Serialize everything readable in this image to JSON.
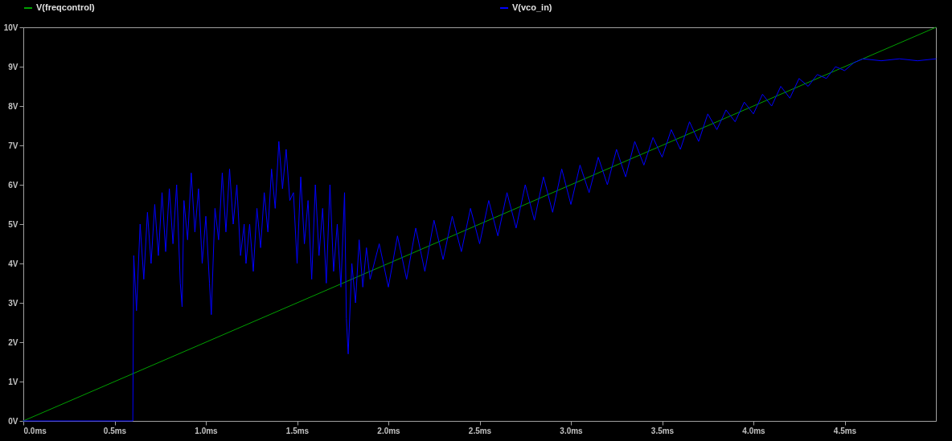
{
  "chart_data": {
    "type": "line",
    "xlim": [
      0,
      5
    ],
    "ylim": [
      0,
      10
    ],
    "xticks": [
      {
        "value": 0,
        "label": "0.0ms"
      },
      {
        "value": 0.5,
        "label": "0.5ms"
      },
      {
        "value": 1,
        "label": "1.0ms"
      },
      {
        "value": 1.5,
        "label": "1.5ms"
      },
      {
        "value": 2,
        "label": "2.0ms"
      },
      {
        "value": 2.5,
        "label": "2.5ms"
      },
      {
        "value": 3,
        "label": "3.0ms"
      },
      {
        "value": 3.5,
        "label": "3.5ms"
      },
      {
        "value": 4,
        "label": "4.0ms"
      },
      {
        "value": 4.5,
        "label": "4.5ms"
      }
    ],
    "yticks": [
      {
        "value": 0,
        "label": "0V"
      },
      {
        "value": 1,
        "label": "1V"
      },
      {
        "value": 2,
        "label": "2V"
      },
      {
        "value": 3,
        "label": "3V"
      },
      {
        "value": 4,
        "label": "4V"
      },
      {
        "value": 5,
        "label": "5V"
      },
      {
        "value": 6,
        "label": "6V"
      },
      {
        "value": 7,
        "label": "7V"
      },
      {
        "value": 8,
        "label": "8V"
      },
      {
        "value": 9,
        "label": "9V"
      },
      {
        "value": 10,
        "label": "10V"
      }
    ],
    "grid": false,
    "legend": "top",
    "marker": "none",
    "line_style": "solid",
    "series": [
      {
        "name": "V(freqcontrol)",
        "color": "#00a000",
        "x": [
          0,
          5
        ],
        "values": [
          0,
          10
        ]
      },
      {
        "name": "V(vco_in)",
        "color": "#0000ff",
        "x": [
          0,
          0.6,
          0.605,
          0.62,
          0.64,
          0.66,
          0.68,
          0.7,
          0.72,
          0.74,
          0.76,
          0.78,
          0.8,
          0.82,
          0.84,
          0.86,
          0.87,
          0.88,
          0.9,
          0.92,
          0.94,
          0.96,
          0.98,
          1.0,
          1.02,
          1.03,
          1.05,
          1.07,
          1.09,
          1.11,
          1.13,
          1.15,
          1.17,
          1.19,
          1.21,
          1.22,
          1.24,
          1.26,
          1.28,
          1.3,
          1.32,
          1.34,
          1.36,
          1.38,
          1.4,
          1.42,
          1.44,
          1.46,
          1.48,
          1.5,
          1.52,
          1.54,
          1.56,
          1.58,
          1.6,
          1.62,
          1.64,
          1.66,
          1.68,
          1.7,
          1.72,
          1.74,
          1.76,
          1.77,
          1.78,
          1.8,
          1.82,
          1.84,
          1.86,
          1.88,
          1.9,
          1.95,
          2.0,
          2.05,
          2.1,
          2.15,
          2.2,
          2.25,
          2.3,
          2.35,
          2.4,
          2.45,
          2.5,
          2.55,
          2.6,
          2.65,
          2.7,
          2.75,
          2.8,
          2.85,
          2.9,
          2.95,
          3.0,
          3.05,
          3.1,
          3.15,
          3.2,
          3.25,
          3.3,
          3.35,
          3.4,
          3.45,
          3.5,
          3.55,
          3.6,
          3.65,
          3.7,
          3.75,
          3.8,
          3.85,
          3.9,
          3.95,
          4.0,
          4.05,
          4.1,
          4.15,
          4.2,
          4.25,
          4.3,
          4.35,
          4.4,
          4.45,
          4.5,
          4.55,
          4.6,
          4.7,
          4.8,
          4.9,
          5.0
        ],
        "values": [
          0,
          0,
          4.2,
          2.8,
          5.0,
          3.6,
          5.3,
          4.0,
          5.5,
          4.2,
          5.8,
          4.3,
          5.9,
          4.5,
          6.0,
          3.5,
          2.9,
          5.6,
          4.6,
          6.3,
          4.8,
          5.9,
          4.0,
          5.2,
          3.5,
          2.7,
          5.4,
          4.6,
          6.3,
          4.8,
          6.4,
          5.0,
          6.0,
          4.2,
          5.0,
          4.0,
          5.0,
          3.8,
          5.4,
          4.4,
          5.8,
          4.8,
          6.4,
          5.4,
          7.1,
          5.9,
          6.9,
          5.6,
          5.8,
          4.0,
          6.2,
          4.5,
          5.6,
          3.6,
          6.0,
          4.2,
          5.4,
          3.5,
          6.0,
          3.8,
          5.0,
          3.4,
          5.8,
          2.6,
          1.7,
          4.0,
          3.0,
          4.6,
          3.4,
          4.4,
          3.6,
          4.5,
          3.4,
          4.7,
          3.6,
          4.9,
          3.8,
          5.1,
          4.1,
          5.2,
          4.3,
          5.4,
          4.5,
          5.6,
          4.7,
          5.8,
          4.9,
          6.0,
          5.1,
          6.2,
          5.3,
          6.4,
          5.5,
          6.5,
          5.8,
          6.7,
          6.0,
          6.9,
          6.2,
          7.1,
          6.5,
          7.2,
          6.7,
          7.4,
          6.9,
          7.6,
          7.1,
          7.8,
          7.4,
          7.9,
          7.6,
          8.1,
          7.8,
          8.3,
          8.0,
          8.5,
          8.2,
          8.7,
          8.5,
          8.8,
          8.7,
          9.0,
          8.9,
          9.1,
          9.2,
          9.15,
          9.2,
          9.15,
          9.2
        ]
      }
    ]
  }
}
